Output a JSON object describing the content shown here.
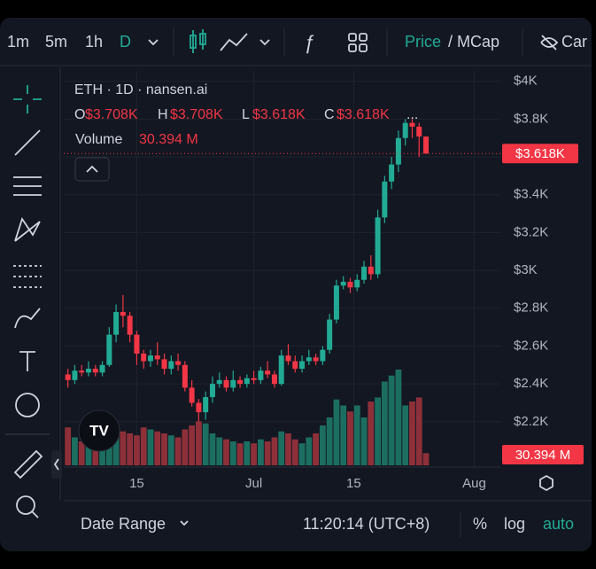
{
  "toolbar": {
    "intervals": [
      "1m",
      "5m",
      "1h",
      "D"
    ],
    "price": "Price",
    "mcap": "/ MCap",
    "clipped": "Car"
  },
  "legend": {
    "symbol": "ETH · 1D · nansen.ai",
    "o": "O",
    "o_value": "$3.708K",
    "h": "H",
    "h_value": "$3.708K",
    "l": "L",
    "l_value": "$3.618K",
    "c": "C",
    "c_value": "$3.618K",
    "more": "...",
    "volume": "Volume",
    "volume_value": "30.394 M"
  },
  "price_tag": "$3.618K",
  "bottom": {
    "date_range": "Date Range",
    "time": "11:20:14 (UTC+8)",
    "percent": "%",
    "log": "log",
    "auto": "auto"
  },
  "chart_data": {
    "type": "candlestick",
    "up_color": "#22ab94",
    "down_color": "#f23645",
    "volume_up_color": "#1c6e60",
    "volume_down_color": "#8e3039",
    "xlim": [
      -0.6,
      62.8
    ],
    "xticks": [
      {
        "value": 10,
        "label": "15"
      },
      {
        "value": 27,
        "label": "Jul"
      },
      {
        "value": 41.5,
        "label": "15"
      },
      {
        "value": 59,
        "label": "Aug"
      }
    ],
    "ylim": [
      1960,
      4055
    ],
    "yticks": [
      {
        "value": 2200,
        "label": "$2.2K"
      },
      {
        "value": 2400,
        "label": "$2.4K"
      },
      {
        "value": 2600,
        "label": "$2.6K"
      },
      {
        "value": 2800,
        "label": "$2.8K"
      },
      {
        "value": 3000,
        "label": "$3K"
      },
      {
        "value": 3200,
        "label": "$3.2K"
      },
      {
        "value": 3400,
        "label": "$3.4K"
      },
      {
        "value": 3600,
        "label": "$3.6K"
      },
      {
        "value": 3800,
        "label": "$3.8K"
      },
      {
        "value": 4000,
        "label": "$4K"
      }
    ],
    "last_price": 3618,
    "open": [
      2450,
      2420,
      2470,
      2460,
      2480,
      2460,
      2500,
      2660,
      2780,
      2760,
      2660,
      2560,
      2520,
      2550,
      2530,
      2480,
      2520,
      2500,
      2380,
      2300,
      2250,
      2330,
      2400,
      2420,
      2380,
      2420,
      2400,
      2430,
      2420,
      2470,
      2450,
      2400,
      2550,
      2520,
      2480,
      2520,
      2540,
      2520,
      2580,
      2740,
      2920,
      2940,
      2910,
      2950,
      3020,
      2980,
      3280,
      3470,
      3560,
      3700,
      3780,
      3760,
      3708
    ],
    "high": [
      2480,
      2500,
      2500,
      2520,
      2500,
      2520,
      2700,
      2820,
      2870,
      2780,
      2680,
      2580,
      2580,
      2620,
      2560,
      2550,
      2560,
      2520,
      2420,
      2320,
      2360,
      2440,
      2460,
      2440,
      2470,
      2440,
      2450,
      2470,
      2490,
      2520,
      2470,
      2580,
      2610,
      2550,
      2550,
      2580,
      2560,
      2600,
      2770,
      2950,
      2970,
      2960,
      2980,
      3050,
      3080,
      3320,
      3500,
      3600,
      3740,
      3800,
      3800,
      3780,
      3708
    ],
    "low": [
      2380,
      2400,
      2440,
      2440,
      2440,
      2440,
      2490,
      2620,
      2700,
      2620,
      2500,
      2480,
      2490,
      2500,
      2450,
      2450,
      2470,
      2360,
      2280,
      2200,
      2210,
      2300,
      2380,
      2360,
      2360,
      2380,
      2380,
      2400,
      2400,
      2430,
      2380,
      2390,
      2500,
      2460,
      2460,
      2500,
      2500,
      2500,
      2560,
      2720,
      2900,
      2880,
      2890,
      2930,
      2950,
      2960,
      3250,
      3430,
      3520,
      3660,
      3700,
      3600,
      3618
    ],
    "close": [
      2420,
      2470,
      2460,
      2480,
      2460,
      2500,
      2660,
      2780,
      2760,
      2660,
      2560,
      2520,
      2550,
      2530,
      2480,
      2520,
      2500,
      2380,
      2300,
      2250,
      2330,
      2400,
      2420,
      2380,
      2420,
      2400,
      2430,
      2420,
      2470,
      2450,
      2400,
      2550,
      2520,
      2480,
      2520,
      2540,
      2520,
      2580,
      2740,
      2920,
      2940,
      2910,
      2950,
      3020,
      2980,
      3280,
      3470,
      3560,
      3700,
      3780,
      3760,
      3708,
      3618
    ],
    "volume": [
      95,
      70,
      60,
      62,
      55,
      70,
      110,
      100,
      85,
      80,
      75,
      95,
      90,
      85,
      80,
      75,
      70,
      90,
      100,
      110,
      105,
      80,
      70,
      65,
      60,
      55,
      60,
      55,
      65,
      60,
      70,
      85,
      80,
      65,
      55,
      70,
      80,
      100,
      120,
      165,
      150,
      135,
      150,
      120,
      160,
      170,
      210,
      225,
      240,
      150,
      160,
      170,
      30.394
    ]
  }
}
